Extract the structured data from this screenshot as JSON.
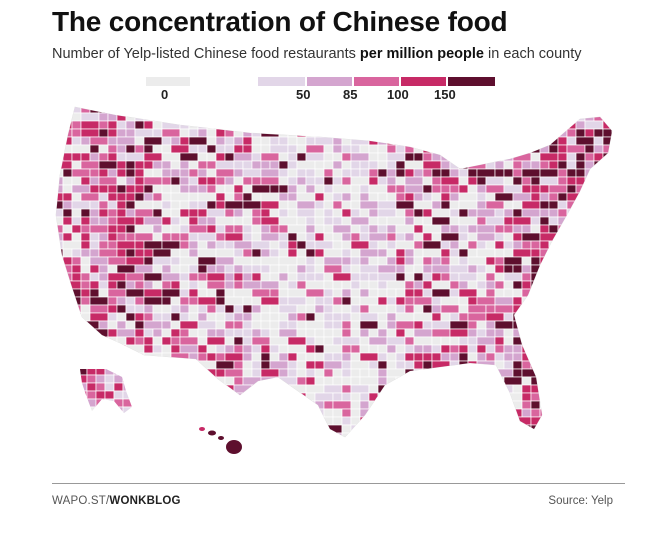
{
  "header": {
    "title": "The concentration of Chinese food",
    "subtitle_pre": "Number of Yelp-listed Chinese food restaurants ",
    "subtitle_bold": "per million people",
    "subtitle_post": " in each county"
  },
  "legend": {
    "items": [
      {
        "label": "0",
        "color": "#ececec"
      },
      {
        "label": "50",
        "color": "#e2d6e8"
      },
      {
        "label": "85",
        "color": "#d4a5cf"
      },
      {
        "label": "100",
        "color": "#d9659e"
      },
      {
        "label": "150",
        "color": "#c72a66"
      },
      {
        "label": "",
        "color": "#5e0f2e"
      }
    ]
  },
  "footer": {
    "credit_prefix": "WAPO.ST/",
    "credit_bold": "WONKBLOG",
    "source": "Source: Yelp"
  },
  "map": {
    "region": "United States counties",
    "colors": {
      "none": "#ececec",
      "low": "#e2d6e8",
      "mid": "#d4a5cf",
      "high": "#d9659e",
      "higher": "#c72a66",
      "highest": "#5e0f2e",
      "border": "#ffffff"
    }
  }
}
